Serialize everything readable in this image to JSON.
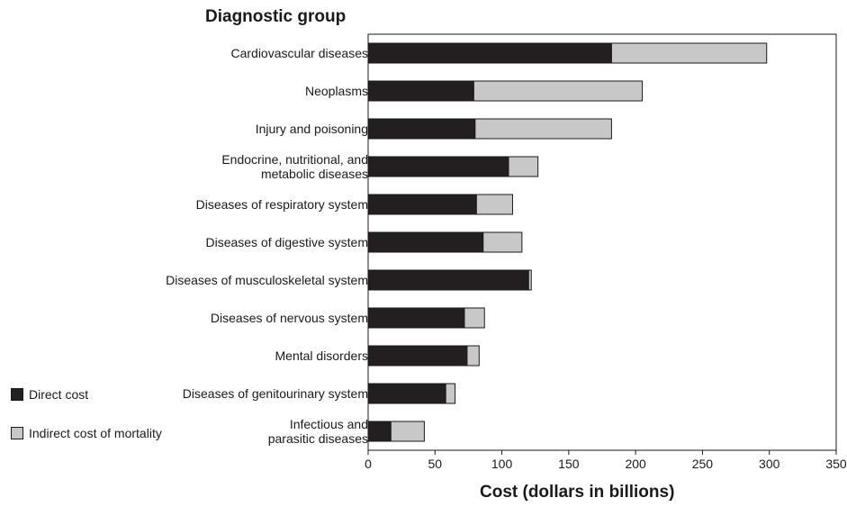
{
  "chart_data": {
    "type": "bar",
    "orientation": "horizontal",
    "stacked": true,
    "title": "Diagnostic group",
    "xlabel": "Cost (dollars in billions)",
    "xlim": [
      0,
      350
    ],
    "xticks": [
      0,
      50,
      100,
      150,
      200,
      250,
      300,
      350
    ],
    "grid": false,
    "legend_position": "bottom-left",
    "categories": [
      "Cardiovascular diseases",
      "Neoplasms",
      "Injury and poisoning",
      "Endocrine, nutritional, and\nmetabolic diseases",
      "Diseases of respiratory system",
      "Diseases of digestive system",
      "Diseases of musculoskeletal system",
      "Diseases of nervous system",
      "Mental disorders",
      "Diseases of genitourinary system",
      "Infectious and\nparasitic diseases"
    ],
    "series": [
      {
        "name": "Direct cost",
        "color": "#231f20",
        "values": [
          182,
          79,
          80,
          105,
          81,
          86,
          120,
          72,
          74,
          58,
          17
        ]
      },
      {
        "name": "Indirect cost of mortality",
        "color": "#c8c8c8",
        "values": [
          116,
          126,
          102,
          22,
          27,
          29,
          2,
          15,
          9,
          7,
          25
        ]
      }
    ]
  }
}
